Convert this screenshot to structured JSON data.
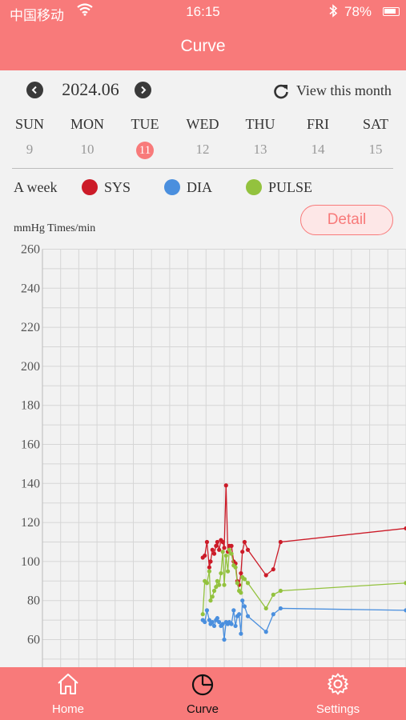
{
  "status_bar": {
    "carrier": "中国移动",
    "time": "16:15",
    "battery": "78%"
  },
  "nav": {
    "title": "Curve"
  },
  "calendar": {
    "month": "2024.06",
    "view_month_label": "View this month",
    "weekdays": [
      "SUN",
      "MON",
      "TUE",
      "WED",
      "THU",
      "FRI",
      "SAT"
    ],
    "dates": [
      "9",
      "10",
      "11",
      "12",
      "13",
      "14",
      "15"
    ],
    "selected_index": 2
  },
  "legend": {
    "range_label": "A week",
    "items": [
      {
        "label": "SYS",
        "color": "#cc1b28"
      },
      {
        "label": "DIA",
        "color": "#4a8fde"
      },
      {
        "label": "PULSE",
        "color": "#93c23e"
      }
    ]
  },
  "detail_button": "Detail",
  "unit_label": "mmHg Times/min",
  "chart_data": {
    "type": "line",
    "grid": true,
    "ylim": [
      50,
      260
    ],
    "y_ticks": [
      260,
      240,
      220,
      200,
      180,
      160,
      140,
      120,
      100,
      80,
      60
    ],
    "x_range": [
      0,
      20
    ],
    "series": [
      {
        "name": "SYS",
        "color": "#cc1b28",
        "x": [
          8.82,
          8.93,
          9.05,
          9.18,
          9.25,
          9.35,
          9.45,
          9.55,
          9.62,
          9.72,
          9.82,
          9.92,
          10.0,
          10.1,
          10.2,
          10.28,
          10.4,
          10.52,
          10.62,
          10.72,
          10.82,
          10.92,
          11.0,
          11.12,
          11.3,
          12.3,
          12.7,
          13.1,
          20.0
        ],
        "y": [
          102,
          103,
          110,
          97,
          100,
          106,
          104,
          108,
          110,
          106,
          111,
          110,
          107,
          139,
          105,
          108,
          108,
          100,
          99,
          90,
          88,
          94,
          105,
          110,
          106,
          93,
          96,
          110,
          117
        ]
      },
      {
        "name": "DIA",
        "color": "#4a8fde",
        "x": [
          8.82,
          8.93,
          9.05,
          9.18,
          9.25,
          9.35,
          9.45,
          9.55,
          9.62,
          9.72,
          9.82,
          9.92,
          10.0,
          10.1,
          10.2,
          10.28,
          10.4,
          10.52,
          10.62,
          10.72,
          10.82,
          10.92,
          11.0,
          11.12,
          11.3,
          12.3,
          12.7,
          13.1,
          20.0
        ],
        "y": [
          70,
          69,
          75,
          70,
          68,
          69,
          67,
          70,
          71,
          69,
          67,
          68,
          60,
          69,
          68,
          69,
          68,
          75,
          67,
          72,
          73,
          63,
          80,
          77,
          72,
          64,
          73,
          76,
          75
        ]
      },
      {
        "name": "PULSE",
        "color": "#93c23e",
        "x": [
          8.82,
          8.93,
          9.05,
          9.18,
          9.25,
          9.35,
          9.45,
          9.55,
          9.62,
          9.72,
          9.82,
          9.92,
          10.0,
          10.1,
          10.2,
          10.28,
          10.4,
          10.52,
          10.62,
          10.72,
          10.82,
          10.92,
          11.0,
          11.12,
          11.3,
          12.3,
          12.7,
          13.1,
          20.0
        ],
        "y": [
          73,
          90,
          89,
          95,
          80,
          82,
          85,
          87,
          90,
          88,
          94,
          105,
          88,
          103,
          95,
          106,
          104,
          98,
          97,
          89,
          85,
          84,
          92,
          91,
          89,
          76,
          83,
          85,
          89
        ]
      }
    ]
  },
  "tabs": [
    {
      "label": "Home",
      "icon": "home-icon"
    },
    {
      "label": "Curve",
      "icon": "curve-icon",
      "active": true
    },
    {
      "label": "Settings",
      "icon": "gear-icon"
    }
  ]
}
